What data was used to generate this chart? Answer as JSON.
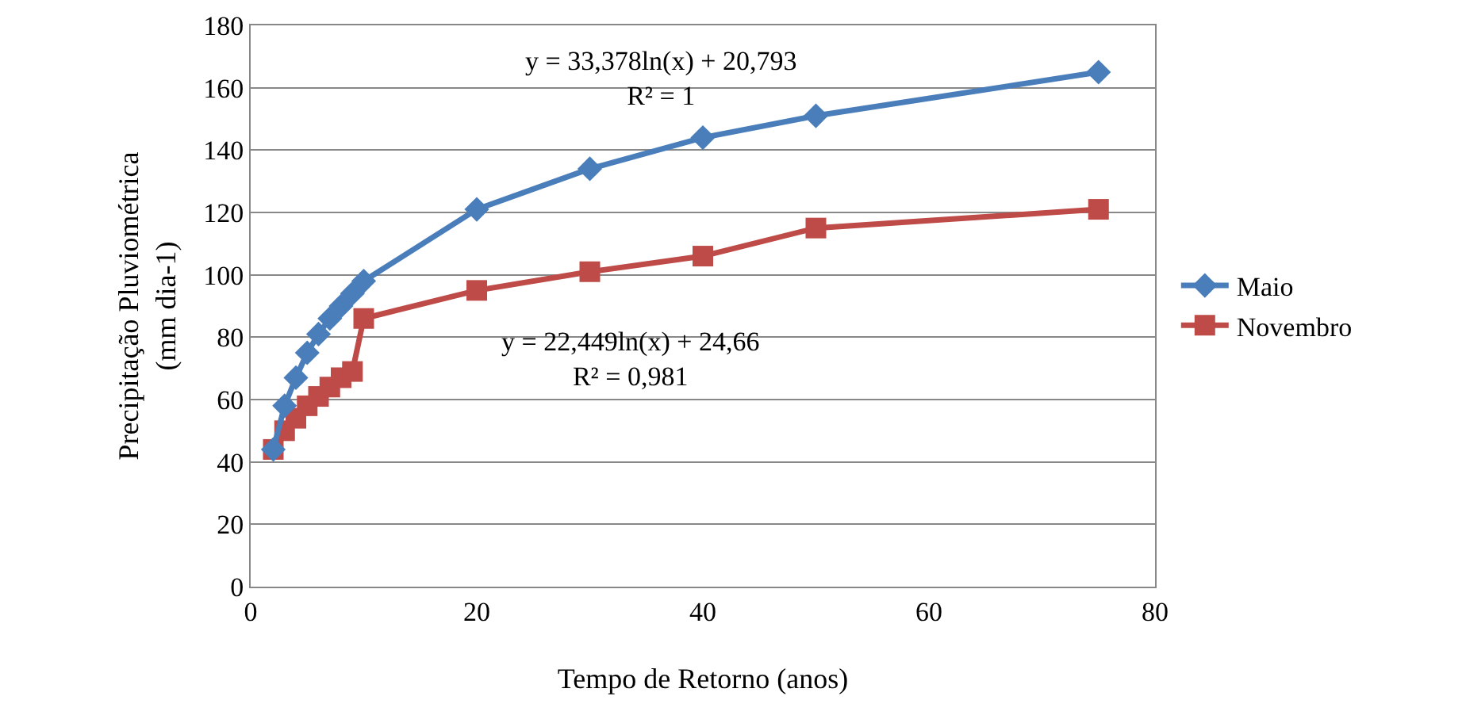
{
  "chart_data": {
    "type": "line",
    "xlabel": "Tempo de Retorno (anos)",
    "ylabel": "Precipitação Pluviométrica\n(mm dia-1)",
    "x": [
      2,
      3,
      4,
      5,
      6,
      7,
      8,
      9,
      10,
      20,
      30,
      40,
      50,
      75
    ],
    "series": [
      {
        "name": "Maio",
        "color": "#4a7ebb",
        "marker": "diamond",
        "values": [
          44,
          58,
          67,
          75,
          81,
          86,
          90,
          94,
          98,
          121,
          134,
          144,
          151,
          165
        ]
      },
      {
        "name": "Novembro",
        "color": "#be4b48",
        "marker": "square",
        "values": [
          44,
          50,
          54,
          58,
          61,
          64,
          67,
          69,
          86,
          95,
          101,
          106,
          115,
          121
        ]
      }
    ],
    "annotations": [
      "y = 33,378ln(x) + 20,793\nR² = 1",
      "y = 22,449ln(x) + 24,66\nR² = 0,981"
    ],
    "xlim": [
      0,
      80
    ],
    "xticks": [
      0,
      20,
      40,
      60,
      80
    ],
    "ylim": [
      0,
      180
    ],
    "yticks": [
      0,
      20,
      40,
      60,
      80,
      100,
      120,
      140,
      160,
      180
    ],
    "grid": "y",
    "legend": "right",
    "line_style": "solid"
  }
}
